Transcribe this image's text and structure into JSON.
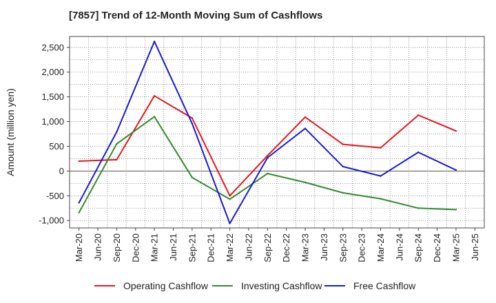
{
  "chart_data": {
    "type": "line",
    "title": "[7857]  Trend of 12-Month Moving Sum of Cashflows",
    "xlabel": "",
    "ylabel": "Amount (million yen)",
    "categories": [
      "Mar-20",
      "Jun-20",
      "Sep-20",
      "Dec-20",
      "Mar-21",
      "Jun-21",
      "Sep-21",
      "Dec-21",
      "Mar-22",
      "Jun-22",
      "Sep-22",
      "Dec-22",
      "Mar-23",
      "Jun-23",
      "Sep-23",
      "Dec-23",
      "Mar-24",
      "Jun-24",
      "Sep-24",
      "Dec-24",
      "Mar-25",
      "Jun-25"
    ],
    "ylim": [
      -1150,
      2720
    ],
    "yticks": [
      -1000,
      -500,
      0,
      500,
      1000,
      1500,
      2000,
      2500
    ],
    "ytick_labels": [
      "-1,000",
      "-500",
      "0",
      "500",
      "1,000",
      "1,500",
      "2,000",
      "2,500"
    ],
    "grid": true,
    "legend_position": "bottom",
    "series": [
      {
        "name": "Operating Cashflow",
        "color": "#e8141b",
        "values": [
          200,
          null,
          230,
          null,
          1520,
          null,
          1070,
          null,
          -500,
          null,
          310,
          null,
          1090,
          null,
          540,
          null,
          470,
          null,
          1130,
          null,
          810,
          null
        ]
      },
      {
        "name": "Investing Cashflow",
        "color": "#2e8b2e",
        "values": [
          -840,
          null,
          550,
          null,
          1100,
          null,
          -130,
          null,
          -570,
          null,
          -50,
          null,
          -230,
          null,
          -440,
          null,
          -560,
          null,
          -750,
          null,
          -780,
          null
        ]
      },
      {
        "name": "Free Cashflow",
        "color": "#1919d6",
        "values": [
          -640,
          null,
          790,
          null,
          2620,
          null,
          960,
          null,
          -1060,
          null,
          270,
          null,
          860,
          null,
          90,
          null,
          -100,
          null,
          380,
          null,
          20,
          null
        ]
      }
    ]
  }
}
